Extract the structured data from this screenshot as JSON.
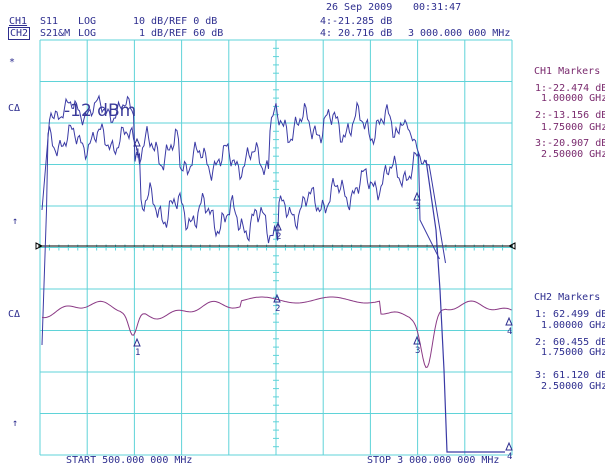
{
  "header": {
    "date": "26 Sep 2009",
    "time": "00:31:47",
    "ch1": {
      "label": "CH1",
      "param": "S11",
      "format": "LOG",
      "scale": "10 dB/REF 0 dB",
      "marker_readout": "4:-21.285 dB"
    },
    "ch2": {
      "label": "CH2",
      "param": "S21&M",
      "format": "LOG",
      "scale": "1 dB/REF 60 dB",
      "marker_readout": "4: 20.716 dB",
      "marker_freq": "3 000.000 000 MHz"
    }
  },
  "left_indicators": {
    "star": "*",
    "ch1_ref": "CΔ",
    "ch1_arrow": "↑",
    "ch2_ref": "CΔ",
    "ch2_arrow": "↑"
  },
  "overlay_text": "-12 dBm",
  "ch1_markers": {
    "title": "CH1 Markers",
    "items": [
      {
        "value": "1:-22.474 dB",
        "freq": "1.00000 GHz"
      },
      {
        "value": "2:-13.156 dB",
        "freq": "1.75000 GHz"
      },
      {
        "value": "3:-20.907 dB",
        "freq": "2.50000 GHz"
      }
    ]
  },
  "ch2_markers": {
    "title": "CH2 Markers",
    "items": [
      {
        "value": "1: 62.499 dB",
        "freq": "1.00000 GHz"
      },
      {
        "value": "2: 60.455 dB",
        "freq": "1.75000 GHz"
      },
      {
        "value": "3: 61.120 dB",
        "freq": "2.50000 GHz"
      }
    ]
  },
  "footer": {
    "start": "START 500.000 000 MHz",
    "stop": "STOP 3 000.000 000 MHz"
  },
  "marker_labels": [
    "1",
    "2",
    "3",
    "4"
  ],
  "colors": {
    "grid": "#5fd3d8",
    "trace_ch1": "#3a3aa5",
    "trace_ch2": "#8b3a85",
    "ref_line": "#000000",
    "text": "#2e2e8f"
  }
}
